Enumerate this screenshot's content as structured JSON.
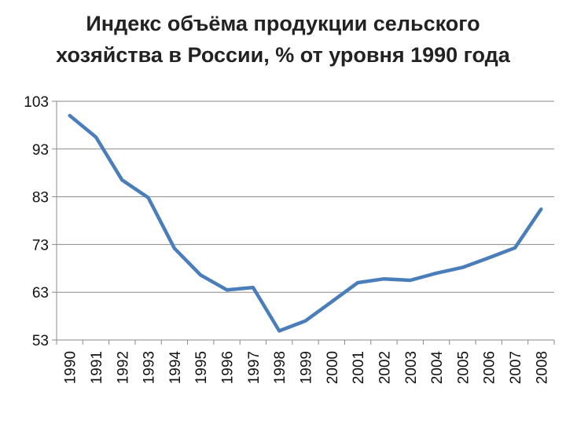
{
  "chart_data": {
    "type": "line",
    "title_lines": [
      "Индекс объёма продукции сельского",
      "хозяйства в России, % от уровня 1990 года"
    ],
    "xlabel": "",
    "ylabel": "",
    "categories": [
      "1990",
      "1991",
      "1992",
      "1993",
      "1994",
      "1995",
      "1996",
      "1997",
      "1998",
      "1999",
      "2000",
      "2001",
      "2002",
      "2003",
      "2004",
      "2005",
      "2006",
      "2007",
      "2008"
    ],
    "series": [
      {
        "values": [
          100,
          95.5,
          86.5,
          82.8,
          72.2,
          66.6,
          63.5,
          64.0,
          54.9,
          57.0,
          61.0,
          65.0,
          65.8,
          65.5,
          67.0,
          68.2,
          70.2,
          72.3,
          80.4
        ]
      }
    ],
    "ylim": [
      53,
      103
    ],
    "yticks": [
      103,
      93,
      83,
      73,
      63,
      53
    ],
    "grid": "horizontal",
    "line_color": "#4a7ebb"
  }
}
